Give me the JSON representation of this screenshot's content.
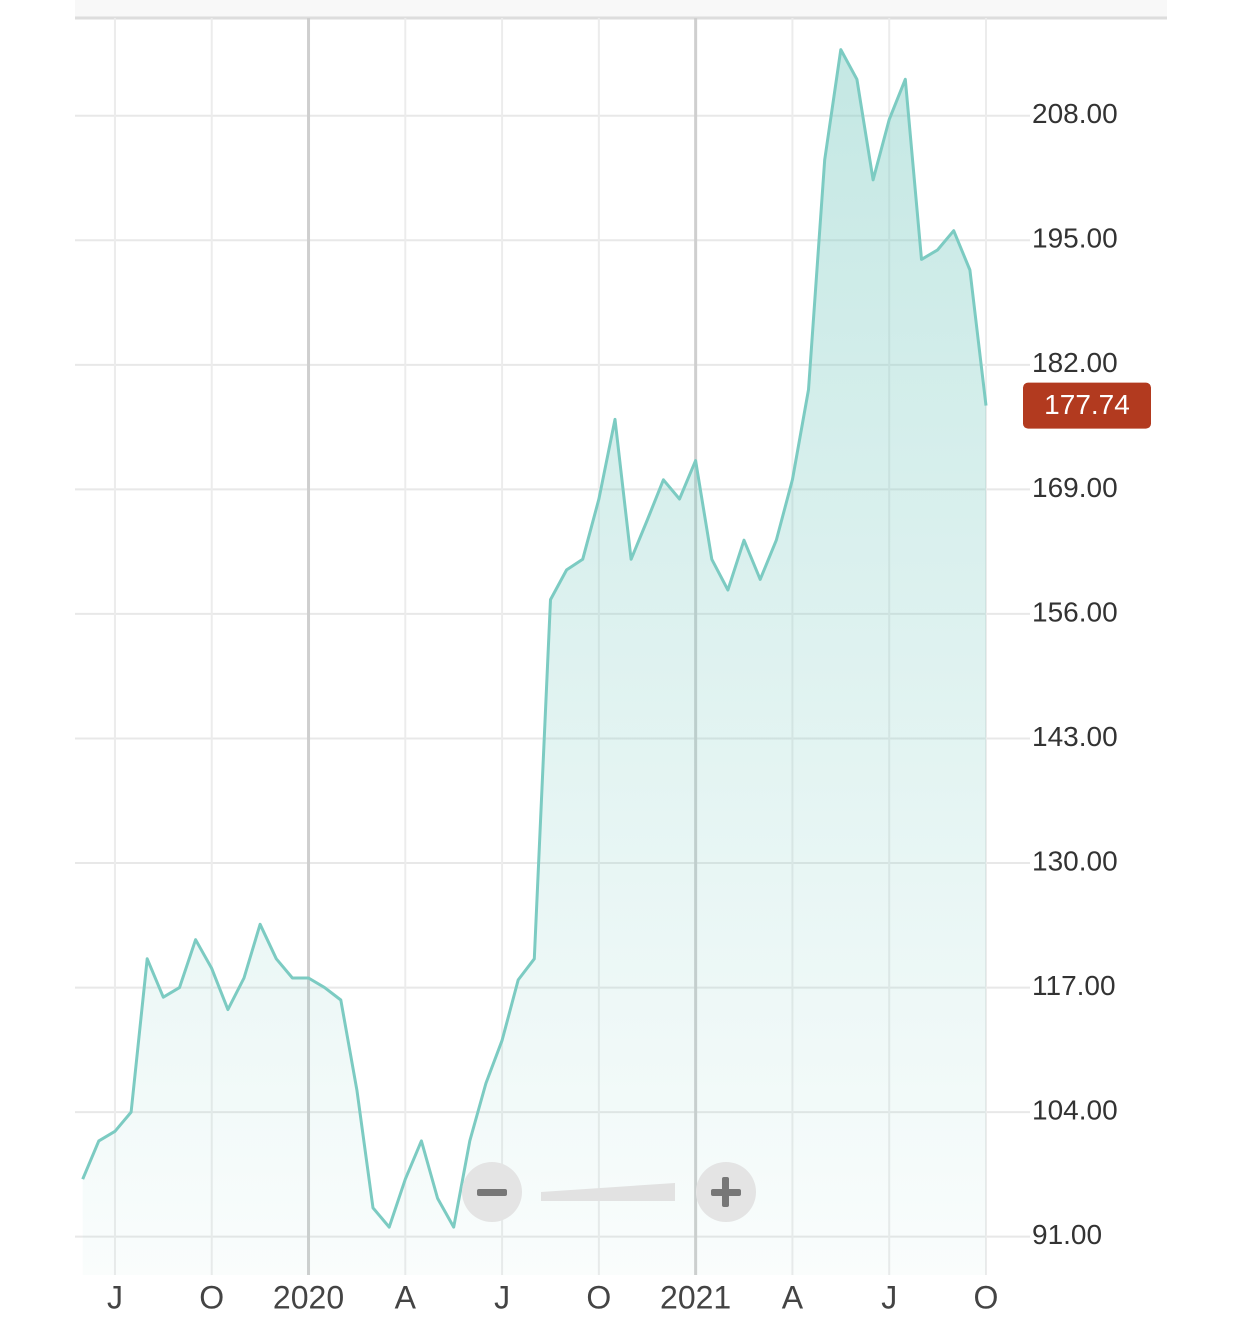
{
  "chart_data": {
    "type": "area",
    "categories": [
      null,
      null,
      "J",
      null,
      null,
      null,
      null,
      null,
      "O",
      null,
      null,
      null,
      null,
      null,
      "2020",
      null,
      null,
      null,
      null,
      null,
      "A",
      null,
      null,
      null,
      null,
      null,
      "J",
      null,
      null,
      null,
      null,
      null,
      "O",
      null,
      null,
      null,
      null,
      null,
      "2021",
      null,
      null,
      null,
      null,
      null,
      "A",
      null,
      null,
      null,
      null,
      null,
      "J",
      null,
      null,
      null,
      null,
      null,
      "O"
    ],
    "series": [
      {
        "color": "#7ccbc2",
        "values": [
          97,
          101,
          102,
          104,
          120,
          116,
          117,
          122,
          119,
          114.7,
          118,
          123.6,
          120,
          118,
          118,
          117,
          115.7,
          106.3,
          94,
          92,
          97,
          101,
          95,
          92,
          101,
          107,
          111.5,
          117.8,
          120,
          157.5,
          160.6,
          161.7,
          168,
          176.3,
          161.7,
          165.8,
          170,
          168,
          172,
          161.7,
          158.5,
          163.7,
          159.6,
          163.7,
          170,
          179.4,
          203.4,
          214.9,
          211.8,
          201.3,
          207.6,
          211.8,
          193,
          194,
          196,
          191.9,
          177.74
        ]
      }
    ],
    "ylim": [
      87,
      218.2
    ],
    "yticks": [
      {
        "value": 91,
        "label": "91.00"
      },
      {
        "value": 104,
        "label": "104.00"
      },
      {
        "value": 117,
        "label": "117.00"
      },
      {
        "value": 130,
        "label": "130.00"
      },
      {
        "value": 143,
        "label": "143.00"
      },
      {
        "value": 156,
        "label": "156.00"
      },
      {
        "value": 169,
        "label": "169.00"
      },
      {
        "value": 182,
        "label": "182.00"
      },
      {
        "value": 195,
        "label": "195.00"
      },
      {
        "value": 208,
        "label": "208.00"
      }
    ],
    "grid": true,
    "last_value_color": "#b23a1f"
  }
}
